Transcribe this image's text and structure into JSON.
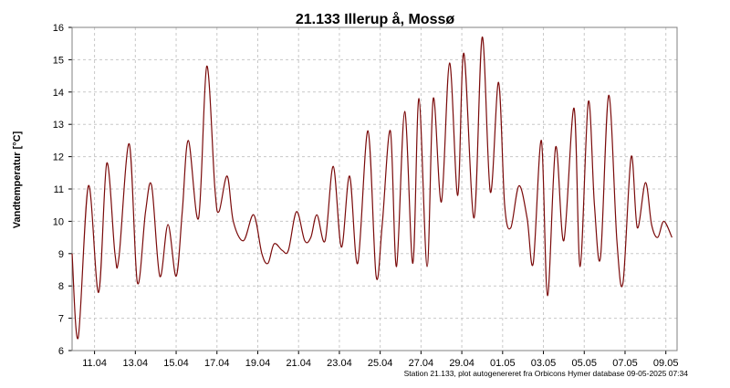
{
  "chart_data": {
    "type": "line",
    "title": "21.133  Illerup å, Mossø",
    "ylabel": "Vandtemperatur [°C]",
    "xlabel": "",
    "footer": "Station 21.133, plot autogenereret fra Orbicons Hymer database 09-05-2025 07:34",
    "ylim": [
      6,
      16
    ],
    "yticks": [
      6,
      7,
      8,
      9,
      10,
      11,
      12,
      13,
      14,
      15,
      16
    ],
    "xlim": [
      9.9,
      39.55
    ],
    "xticks": [
      {
        "value": 11,
        "label": "11.04"
      },
      {
        "value": 13,
        "label": "13.04"
      },
      {
        "value": 15,
        "label": "15.04"
      },
      {
        "value": 17,
        "label": "17.04"
      },
      {
        "value": 19,
        "label": "19.04"
      },
      {
        "value": 21,
        "label": "21.04"
      },
      {
        "value": 23,
        "label": "23.04"
      },
      {
        "value": 25,
        "label": "25.04"
      },
      {
        "value": 27,
        "label": "27.04"
      },
      {
        "value": 29,
        "label": "29.04"
      },
      {
        "value": 31,
        "label": "01.05"
      },
      {
        "value": 33,
        "label": "03.05"
      },
      {
        "value": 35,
        "label": "05.05"
      },
      {
        "value": 37,
        "label": "07.05"
      },
      {
        "value": 39,
        "label": "09.05"
      }
    ],
    "grid": true,
    "series": [
      {
        "name": "",
        "color": "#7a0a0a",
        "x": [
          9.9,
          10.2,
          10.7,
          11.2,
          11.6,
          12.0,
          12.2,
          12.7,
          13.1,
          13.5,
          13.8,
          14.2,
          14.6,
          15.0,
          15.3,
          15.6,
          16.1,
          16.5,
          16.9,
          17.1,
          17.5,
          17.8,
          18.3,
          18.8,
          19.2,
          19.5,
          19.8,
          20.2,
          20.5,
          20.9,
          21.3,
          21.6,
          21.9,
          22.3,
          22.7,
          23.1,
          23.5,
          23.9,
          24.4,
          24.8,
          25.1,
          25.5,
          25.8,
          26.2,
          26.6,
          26.9,
          27.3,
          27.6,
          28.0,
          28.4,
          28.8,
          29.1,
          29.6,
          30.0,
          30.4,
          30.8,
          31.1,
          31.4,
          31.8,
          32.2,
          32.5,
          32.9,
          33.2,
          33.6,
          34.0,
          34.5,
          34.8,
          35.2,
          35.5,
          35.8,
          36.2,
          36.6,
          36.9,
          37.3,
          37.6,
          38.0,
          38.3,
          38.6,
          38.9,
          39.3
        ],
        "y": [
          9.0,
          6.4,
          11.1,
          7.8,
          11.8,
          9.0,
          8.9,
          12.4,
          8.1,
          10.3,
          11.1,
          8.3,
          9.9,
          8.3,
          10.3,
          12.5,
          10.1,
          14.8,
          11.0,
          10.3,
          11.4,
          10.0,
          9.4,
          10.2,
          9.0,
          8.7,
          9.3,
          9.1,
          9.1,
          10.3,
          9.4,
          9.5,
          10.2,
          9.4,
          11.7,
          9.2,
          11.4,
          8.7,
          12.8,
          8.3,
          9.9,
          12.8,
          8.6,
          13.4,
          8.7,
          13.8,
          8.6,
          13.8,
          10.6,
          14.9,
          10.8,
          15.2,
          10.1,
          15.7,
          10.9,
          14.3,
          10.5,
          9.8,
          11.1,
          10.1,
          8.7,
          12.5,
          7.7,
          12.3,
          9.4,
          13.5,
          8.6,
          13.7,
          10.5,
          8.9,
          13.9,
          9.4,
          8.1,
          12.0,
          9.8,
          11.2,
          9.9,
          9.5,
          10.0,
          9.5
        ]
      }
    ]
  }
}
